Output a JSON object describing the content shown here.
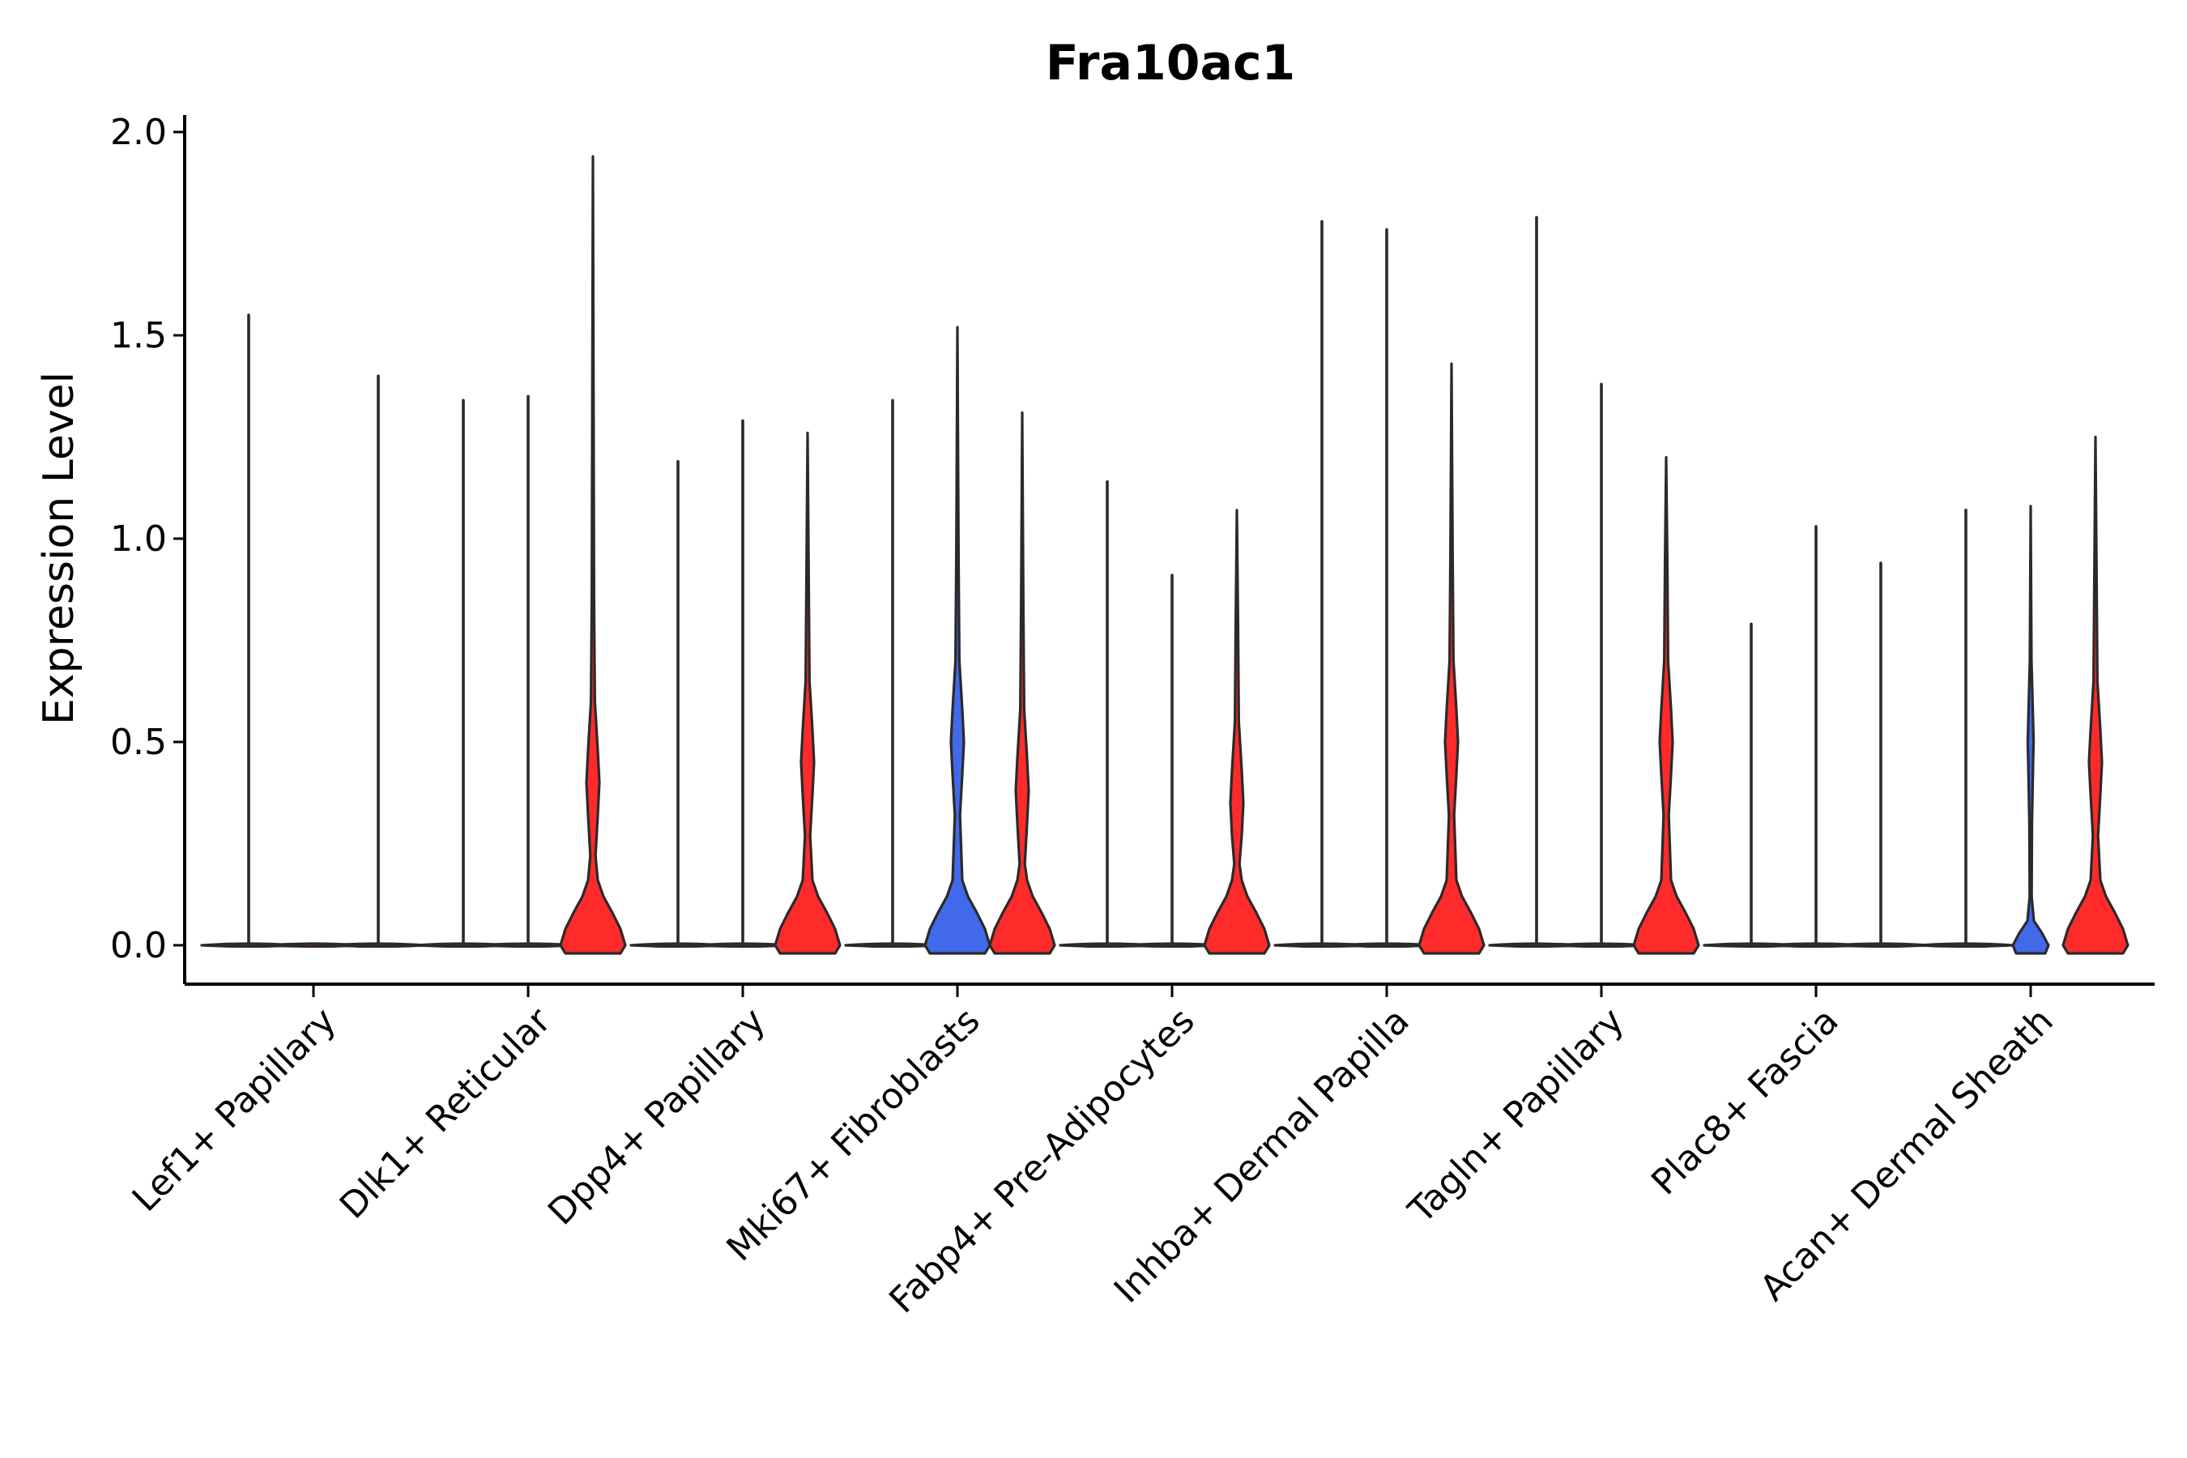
{
  "chart_data": {
    "type": "violin",
    "title": "Fra10ac1",
    "xlabel": "",
    "ylabel": "Expression Level",
    "ylim": [
      -0.1,
      2.05
    ],
    "yticks": [
      0.0,
      0.5,
      1.0,
      1.5,
      2.0
    ],
    "ytick_labels": [
      "0.0",
      "0.5",
      "1.0",
      "1.5",
      "2.0"
    ],
    "grid": false,
    "legend": "none",
    "colors": {
      "red": "#ff2a2a",
      "blue": "#4169e9",
      "outline": "#2a2a2a"
    },
    "categories": [
      "Lef1+ Papillary",
      "Dlk1+ Reticular",
      "Dpp4+ Papillary",
      "Mki67+ Fibroblasts",
      "Fabp4+ Pre-Adipocytes",
      "Inhba+ Dermal Papilla",
      "Tagln+ Papillary",
      "Plac8+ Fascia",
      "Acan+ Dermal Sheath"
    ],
    "groups": [
      {
        "category": "Lef1+ Papillary",
        "violins": [
          {
            "offset": -1,
            "max": 1.55,
            "color": "red",
            "shape": "flat"
          },
          {
            "offset": 0,
            "max": 0.0,
            "color": "red",
            "shape": "flat"
          },
          {
            "offset": 1,
            "max": 1.4,
            "color": "red",
            "shape": "flat"
          }
        ]
      },
      {
        "category": "Dlk1+ Reticular",
        "violins": [
          {
            "offset": -1,
            "max": 1.34,
            "color": "red",
            "shape": "flat"
          },
          {
            "offset": 0,
            "max": 1.35,
            "color": "red",
            "shape": "flat"
          },
          {
            "offset": 1,
            "max": 1.94,
            "color": "red",
            "shape": "bottom-heavy",
            "mode2": 0.4
          }
        ]
      },
      {
        "category": "Dpp4+ Papillary",
        "violins": [
          {
            "offset": -1,
            "max": 1.19,
            "color": "red",
            "shape": "flat"
          },
          {
            "offset": 0,
            "max": 1.29,
            "color": "red",
            "shape": "flat"
          },
          {
            "offset": 1,
            "max": 1.26,
            "color": "red",
            "shape": "bottom-heavy",
            "mode2": 0.45
          }
        ]
      },
      {
        "category": "Mki67+ Fibroblasts",
        "violins": [
          {
            "offset": -1,
            "max": 1.34,
            "color": "red",
            "shape": "flat"
          },
          {
            "offset": 0,
            "max": 1.52,
            "color": "blue",
            "shape": "bottom-heavy",
            "mode2": 0.5
          },
          {
            "offset": 1,
            "max": 1.31,
            "color": "red",
            "shape": "bottom-heavy",
            "mode2": 0.38
          }
        ]
      },
      {
        "category": "Fabp4+ Pre-Adipocytes",
        "violins": [
          {
            "offset": -1,
            "max": 1.14,
            "color": "red",
            "shape": "flat"
          },
          {
            "offset": 0,
            "max": 0.91,
            "color": "red",
            "shape": "flat"
          },
          {
            "offset": 1,
            "max": 1.07,
            "color": "red",
            "shape": "bottom-heavy",
            "mode2": 0.35
          }
        ]
      },
      {
        "category": "Inhba+ Dermal Papilla",
        "violins": [
          {
            "offset": -1,
            "max": 1.78,
            "color": "red",
            "shape": "flat"
          },
          {
            "offset": 0,
            "max": 1.76,
            "color": "red",
            "shape": "flat"
          },
          {
            "offset": 1,
            "max": 1.43,
            "color": "red",
            "shape": "bottom-heavy",
            "mode2": 0.5
          }
        ]
      },
      {
        "category": "Tagln+ Papillary",
        "violins": [
          {
            "offset": -1,
            "max": 1.79,
            "color": "red",
            "shape": "flat"
          },
          {
            "offset": 0,
            "max": 1.38,
            "color": "red",
            "shape": "flat"
          },
          {
            "offset": 1,
            "max": 1.2,
            "color": "red",
            "shape": "bottom-heavy",
            "mode2": 0.5
          }
        ]
      },
      {
        "category": "Plac8+ Fascia",
        "violins": [
          {
            "offset": -1,
            "max": 0.79,
            "color": "red",
            "shape": "flat"
          },
          {
            "offset": 0,
            "max": 1.03,
            "color": "red",
            "shape": "flat"
          },
          {
            "offset": 1,
            "max": 0.94,
            "color": "red",
            "shape": "flat"
          }
        ]
      },
      {
        "category": "Acan+ Dermal Sheath",
        "violins": [
          {
            "offset": -1,
            "max": 1.07,
            "color": "red",
            "shape": "flat"
          },
          {
            "offset": 0,
            "max": 1.08,
            "color": "blue",
            "shape": "small",
            "mode2": 0.5
          },
          {
            "offset": 1,
            "max": 1.25,
            "color": "red",
            "shape": "bottom-heavy",
            "mode2": 0.45
          }
        ]
      }
    ]
  }
}
